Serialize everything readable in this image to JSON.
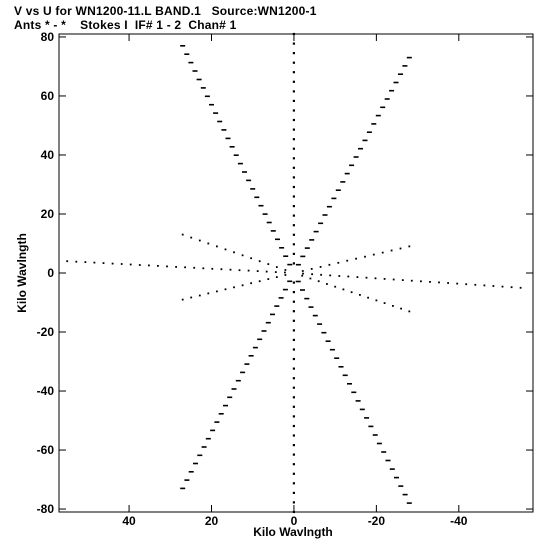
{
  "header": {
    "title_line1": "V vs U for WN1200-11.L BAND.1   Source:WN1200-1",
    "title_line2": "Ants * - *    Stokes I  IF# 1 - 2  Chan# 1"
  },
  "chart_data": {
    "type": "scatter",
    "title": "V vs U for WN1200-11.L BAND.1   Source:WN1200-1",
    "subtitle": "Ants * - *    Stokes I  IF# 1 - 2  Chan# 1",
    "xlabel": "Kilo Wavlngth",
    "ylabel": "Kilo Wavlngth",
    "x_reversed": true,
    "xlim": [
      57,
      -58
    ],
    "ylim": [
      -81,
      81
    ],
    "x_ticks": [
      {
        "value": 40,
        "label": "40"
      },
      {
        "value": 20,
        "label": "20"
      },
      {
        "value": 0,
        "label": "0"
      },
      {
        "value": -20,
        "label": "-20"
      },
      {
        "value": -40,
        "label": "-40"
      }
    ],
    "y_ticks": [
      {
        "value": 80,
        "label": "80"
      },
      {
        "value": 60,
        "label": "60"
      },
      {
        "value": 40,
        "label": "40"
      },
      {
        "value": 20,
        "label": "20"
      },
      {
        "value": 0,
        "label": "0"
      },
      {
        "value": -20,
        "label": "-20"
      },
      {
        "value": -40,
        "label": "-40"
      },
      {
        "value": -60,
        "label": "-60"
      },
      {
        "value": -80,
        "label": "-80"
      }
    ],
    "grid": false,
    "legend": "none",
    "marker_color": "#000000",
    "sampling_pattern": "radial spokes through origin",
    "spokes": [
      {
        "from": [
          0,
          0
        ],
        "to": [
          0,
          81
        ]
      },
      {
        "from": [
          0,
          0
        ],
        "to": [
          0,
          -81
        ]
      },
      {
        "from": [
          0,
          0
        ],
        "to": [
          27,
          77
        ]
      },
      {
        "from": [
          0,
          0
        ],
        "to": [
          -28,
          73
        ]
      },
      {
        "from": [
          0,
          0
        ],
        "to": [
          27,
          -73
        ]
      },
      {
        "from": [
          0,
          0
        ],
        "to": [
          -28,
          -78
        ]
      },
      {
        "from": [
          0,
          0
        ],
        "to": [
          55,
          4
        ]
      },
      {
        "from": [
          0,
          0
        ],
        "to": [
          -55,
          -5
        ]
      },
      {
        "from": [
          0,
          0
        ],
        "to": [
          27,
          13
        ]
      },
      {
        "from": [
          0,
          0
        ],
        "to": [
          -28,
          -13
        ]
      },
      {
        "from": [
          0,
          0
        ],
        "to": [
          27,
          -9
        ]
      },
      {
        "from": [
          0,
          0
        ],
        "to": [
          -28,
          9
        ]
      }
    ]
  }
}
